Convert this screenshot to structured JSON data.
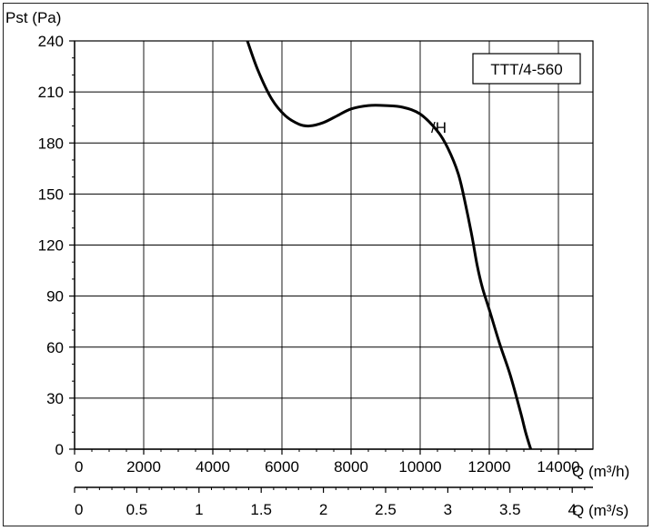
{
  "chart_data": {
    "type": "line",
    "model_label": "TTT/4-560",
    "ylabel": "Pst (Pa)",
    "xlabel_primary": "Q (m³/h)",
    "xlabel_secondary": "Q (m³/s)",
    "xlim": [
      0,
      15000
    ],
    "ylim": [
      0,
      240
    ],
    "secondary_xlim": [
      0,
      4.1667
    ],
    "grid": true,
    "x_ticks": [
      "0",
      "2000",
      "4000",
      "6000",
      "8000",
      "10000",
      "12000",
      "14000"
    ],
    "x_tick_values": [
      0,
      2000,
      4000,
      6000,
      8000,
      10000,
      12000,
      14000
    ],
    "y_ticks": [
      "0",
      "30",
      "60",
      "90",
      "120",
      "150",
      "180",
      "210",
      "240"
    ],
    "y_tick_values": [
      0,
      30,
      60,
      90,
      120,
      150,
      180,
      210,
      240
    ],
    "x2_ticks": [
      "0",
      "0.5",
      "1",
      "1.5",
      "2",
      "2.5",
      "3",
      "3.5",
      "4"
    ],
    "x2_tick_values": [
      0,
      0.5,
      1,
      1.5,
      2,
      2.5,
      3,
      3.5,
      4
    ],
    "series": [
      {
        "name": "/H",
        "x": [
          5000,
          5300,
          5700,
          6100,
          6500,
          6800,
          7200,
          7600,
          8000,
          8500,
          9000,
          9500,
          10000,
          10500,
          10800,
          11100,
          11300,
          11500,
          11650,
          11800,
          12000,
          12300,
          12600,
          12900,
          13050,
          13200
        ],
        "y": [
          240,
          223,
          206,
          196,
          191,
          190,
          192,
          196,
          200,
          202,
          202,
          201,
          197,
          187,
          177,
          162,
          145,
          125,
          108,
          95,
          82,
          62,
          44,
          22,
          10,
          0
        ]
      }
    ]
  }
}
